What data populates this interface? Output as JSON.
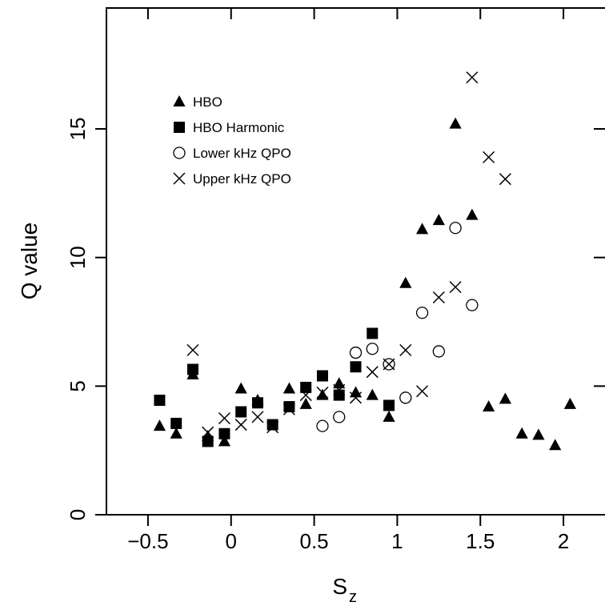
{
  "chart_data": {
    "type": "scatter",
    "xlabel": "S",
    "xlabel_subscript": "z",
    "ylabel": "Q value",
    "xlim": [
      -0.75,
      2.25
    ],
    "ylim": [
      0,
      19.7
    ],
    "xticks": [
      -0.5,
      0,
      0.5,
      1,
      1.5,
      2
    ],
    "xtick_labels": [
      "−0.5",
      "0",
      "0.5",
      "1",
      "1.5",
      "2"
    ],
    "yticks": [
      0,
      5,
      10,
      15
    ],
    "ytick_labels": [
      "0",
      "5",
      "10",
      "15"
    ],
    "grid": false,
    "legend_position": "top-left",
    "series": [
      {
        "name": "HBO",
        "marker": "filled-triangle",
        "points": [
          [
            -0.43,
            3.45
          ],
          [
            -0.33,
            3.15
          ],
          [
            -0.23,
            5.45
          ],
          [
            -0.14,
            3.05
          ],
          [
            -0.04,
            2.85
          ],
          [
            0.06,
            4.9
          ],
          [
            0.16,
            4.45
          ],
          [
            0.35,
            4.9
          ],
          [
            0.45,
            4.3
          ],
          [
            0.55,
            4.65
          ],
          [
            0.65,
            5.1
          ],
          [
            0.75,
            4.75
          ],
          [
            0.85,
            4.65
          ],
          [
            0.95,
            3.8
          ],
          [
            1.05,
            9.0
          ],
          [
            1.15,
            11.1
          ],
          [
            1.25,
            11.45
          ],
          [
            1.35,
            15.2
          ],
          [
            1.45,
            11.65
          ],
          [
            1.55,
            4.2
          ],
          [
            1.65,
            4.5
          ],
          [
            1.75,
            3.15
          ],
          [
            1.85,
            3.1
          ],
          [
            1.95,
            2.7
          ],
          [
            2.04,
            4.3
          ]
        ]
      },
      {
        "name": "HBO Harmonic",
        "marker": "filled-square",
        "points": [
          [
            -0.43,
            4.45
          ],
          [
            -0.33,
            3.55
          ],
          [
            -0.23,
            5.65
          ],
          [
            -0.14,
            2.85
          ],
          [
            -0.04,
            3.15
          ],
          [
            0.06,
            4.0
          ],
          [
            0.16,
            4.35
          ],
          [
            0.25,
            3.5
          ],
          [
            0.35,
            4.2
          ],
          [
            0.45,
            4.95
          ],
          [
            0.55,
            5.4
          ],
          [
            0.65,
            4.65
          ],
          [
            0.75,
            5.75
          ],
          [
            0.85,
            7.05
          ],
          [
            0.95,
            4.25
          ]
        ]
      },
      {
        "name": "Lower kHz QPO",
        "marker": "open-circle",
        "points": [
          [
            0.55,
            3.45
          ],
          [
            0.65,
            3.8
          ],
          [
            0.75,
            6.3
          ],
          [
            0.85,
            6.45
          ],
          [
            0.95,
            5.85
          ],
          [
            1.05,
            4.55
          ],
          [
            1.15,
            7.85
          ],
          [
            1.25,
            6.35
          ],
          [
            1.35,
            11.15
          ],
          [
            1.45,
            8.15
          ]
        ]
      },
      {
        "name": "Upper kHz QPO",
        "marker": "cross",
        "points": [
          [
            -0.23,
            6.4
          ],
          [
            -0.14,
            3.2
          ],
          [
            -0.04,
            3.75
          ],
          [
            0.06,
            3.5
          ],
          [
            0.16,
            3.8
          ],
          [
            0.25,
            3.4
          ],
          [
            0.35,
            4.1
          ],
          [
            0.45,
            4.65
          ],
          [
            0.55,
            4.75
          ],
          [
            0.65,
            4.85
          ],
          [
            0.75,
            4.55
          ],
          [
            0.85,
            5.55
          ],
          [
            0.95,
            5.85
          ],
          [
            1.05,
            6.4
          ],
          [
            1.15,
            4.8
          ],
          [
            1.25,
            8.45
          ],
          [
            1.35,
            8.85
          ],
          [
            1.45,
            17.0
          ],
          [
            1.55,
            13.9
          ],
          [
            1.65,
            13.05
          ]
        ]
      }
    ]
  }
}
